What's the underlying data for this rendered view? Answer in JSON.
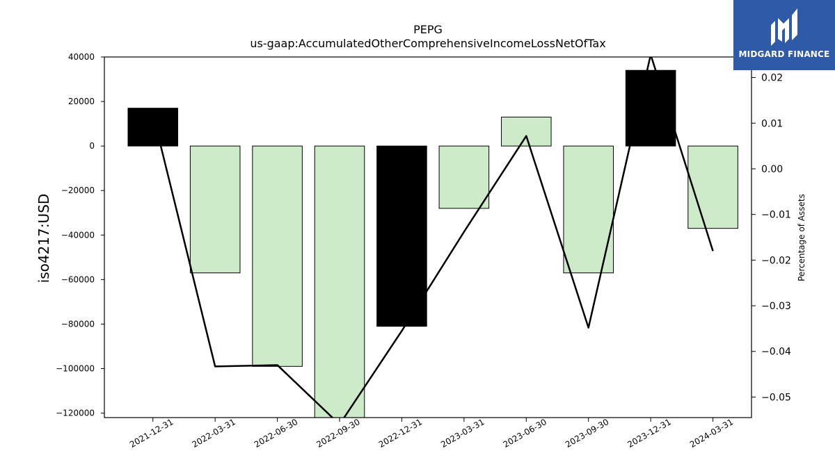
{
  "chart_data": {
    "type": "bar",
    "title": "PEPG",
    "subtitle": "us-gaap:AccumulatedOtherComprehensiveIncomeLossNetOfTax",
    "xlabel": "",
    "ylabel": "iso4217:USD",
    "y2label": "Percentage of Assets",
    "categories": [
      "2021-12-31",
      "2022-03-31",
      "2022-06-30",
      "2022-09-30",
      "2022-12-31",
      "2023-03-31",
      "2023-06-30",
      "2023-09-30",
      "2023-12-31",
      "2024-03-31"
    ],
    "values": [
      17000,
      -57000,
      -99000,
      -123000,
      -81000,
      -28000,
      13000,
      -57000,
      34000,
      -37000
    ],
    "bar_colors": [
      "#000000",
      "#cdeac9",
      "#cdeac9",
      "#cdeac9",
      "#000000",
      "#cdeac9",
      "#cdeac9",
      "#cdeac9",
      "#000000",
      "#cdeac9"
    ],
    "line_series": {
      "name": "",
      "axis": "right",
      "values": [
        0.012,
        -0.0433,
        -0.043,
        -0.056,
        -0.0355,
        -0.0138,
        0.0072,
        -0.0348,
        0.025,
        -0.018
      ]
    },
    "ylim": [
      -122000,
      40000
    ],
    "y2lim": [
      -0.0545,
      0.0245
    ],
    "yticks": [
      40000,
      20000,
      0,
      -20000,
      -40000,
      -60000,
      -80000,
      -100000,
      -120000
    ],
    "y2ticks": [
      0.02,
      0.01,
      0.0,
      -0.01,
      -0.02,
      -0.03,
      -0.04,
      -0.05
    ],
    "ytick_labels": [
      "40000",
      "20000",
      "0",
      "−20000",
      "−40000",
      "−60000",
      "−80000",
      "−100000",
      "−120000"
    ],
    "y2tick_labels": [
      "0.02",
      "0.01",
      "0.00",
      "−0.01",
      "−0.02",
      "−0.03",
      "−0.04",
      "−0.05"
    ],
    "grid": false,
    "legend": "none"
  },
  "logo": {
    "text": "MIDGARD FINANCE",
    "color": "#2f5aa8"
  }
}
